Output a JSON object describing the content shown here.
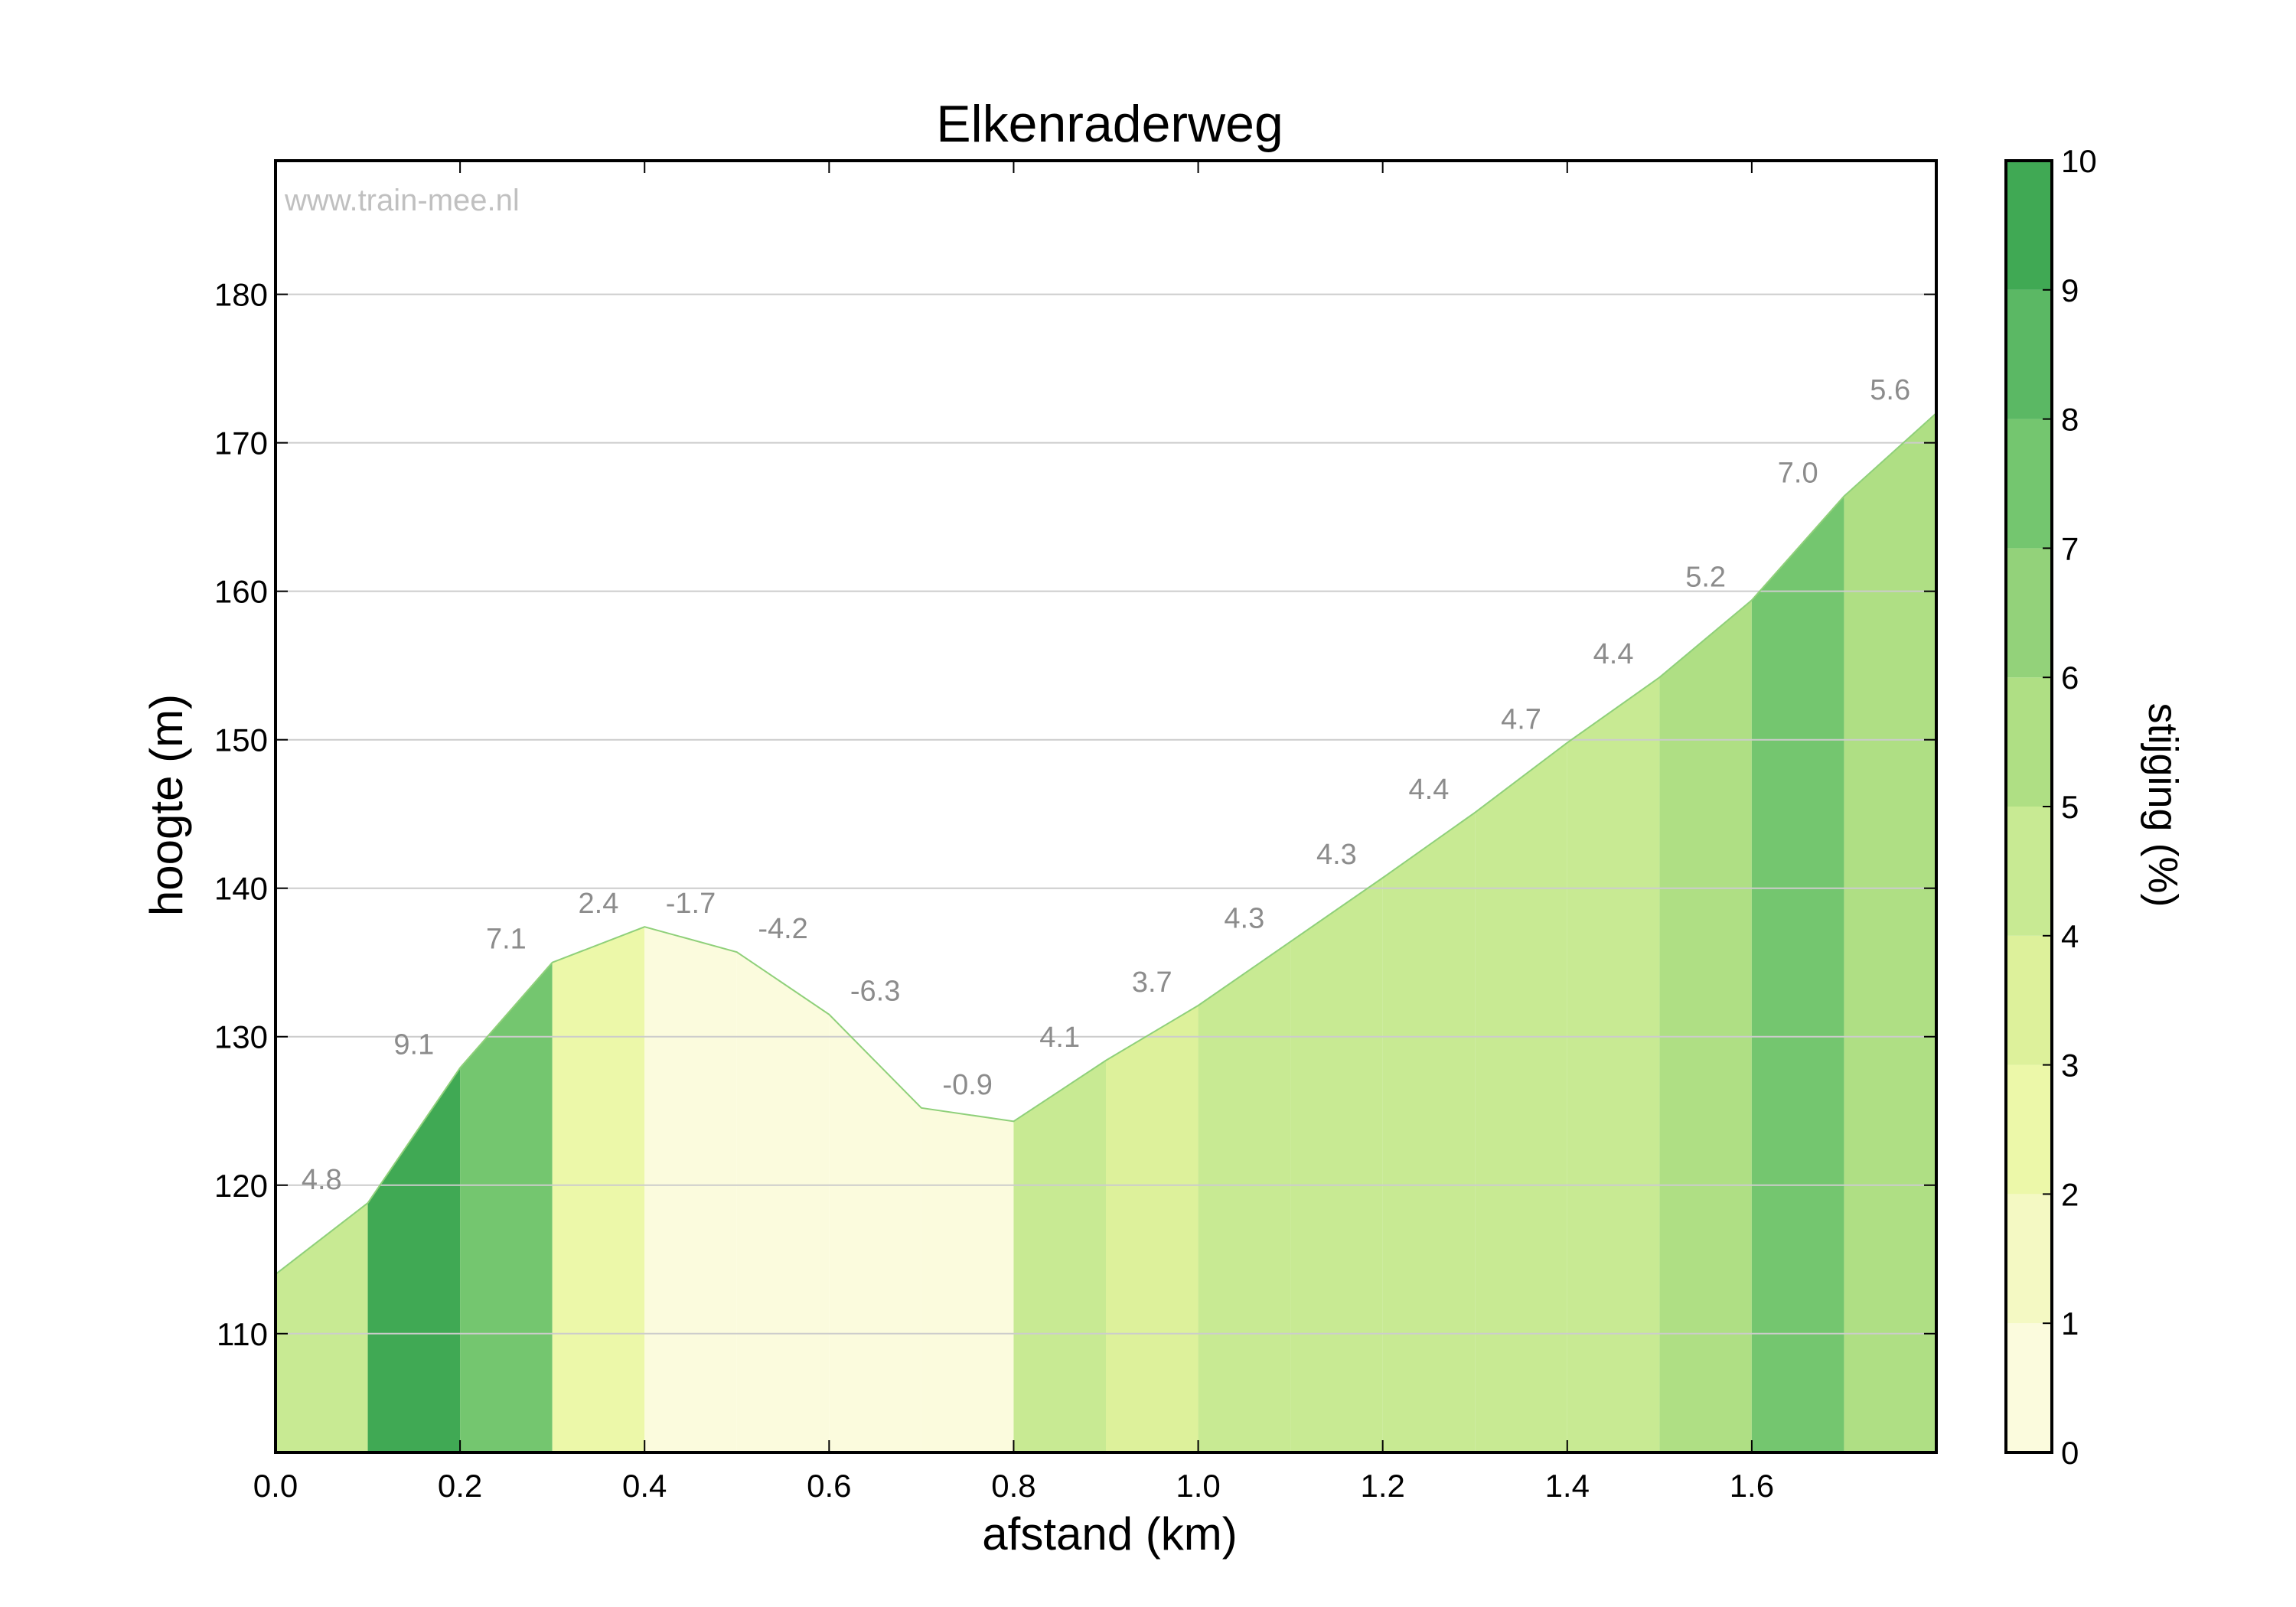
{
  "watermark": "www.train-mee.nl",
  "chart_data": {
    "type": "area",
    "title": "Elkenraderweg",
    "xlabel": "afstand (km)",
    "ylabel": "hoogte (m)",
    "xlim": [
      0,
      1.8
    ],
    "ylim": [
      102,
      189
    ],
    "xticks": [
      0.0,
      0.2,
      0.4,
      0.6,
      0.8,
      1.0,
      1.2,
      1.4,
      1.6
    ],
    "xtick_labels": [
      "0.0",
      "0.2",
      "0.4",
      "0.6",
      "0.8",
      "1.0",
      "1.2",
      "1.4",
      "1.6"
    ],
    "yticks": [
      110,
      120,
      130,
      140,
      150,
      160,
      170,
      180
    ],
    "ytick_labels": [
      "110",
      "120",
      "130",
      "140",
      "150",
      "160",
      "170",
      "180"
    ],
    "grid": "horizontal",
    "profile": {
      "x": [
        0.0,
        0.1,
        0.2,
        0.3,
        0.4,
        0.5,
        0.6,
        0.7,
        0.8,
        0.9,
        1.0,
        1.1,
        1.2,
        1.3,
        1.4,
        1.5,
        1.6,
        1.7,
        1.8
      ],
      "y": [
        114.0,
        118.8,
        127.9,
        135.0,
        137.4,
        135.7,
        131.5,
        125.2,
        124.3,
        128.4,
        132.1,
        136.4,
        140.7,
        145.1,
        149.8,
        154.2,
        159.4,
        166.4,
        172.0
      ]
    },
    "segments": [
      {
        "x0": 0.0,
        "x1": 0.1,
        "gradient": 4.8,
        "label": "4.8"
      },
      {
        "x0": 0.1,
        "x1": 0.2,
        "gradient": 9.1,
        "label": "9.1"
      },
      {
        "x0": 0.2,
        "x1": 0.3,
        "gradient": 7.1,
        "label": "7.1"
      },
      {
        "x0": 0.3,
        "x1": 0.4,
        "gradient": 2.4,
        "label": "2.4"
      },
      {
        "x0": 0.4,
        "x1": 0.5,
        "gradient": -1.7,
        "label": "-1.7"
      },
      {
        "x0": 0.5,
        "x1": 0.6,
        "gradient": -4.2,
        "label": "-4.2"
      },
      {
        "x0": 0.6,
        "x1": 0.7,
        "gradient": -6.3,
        "label": "-6.3"
      },
      {
        "x0": 0.7,
        "x1": 0.8,
        "gradient": -0.9,
        "label": "-0.9"
      },
      {
        "x0": 0.8,
        "x1": 0.9,
        "gradient": 4.1,
        "label": "4.1"
      },
      {
        "x0": 0.9,
        "x1": 1.0,
        "gradient": 3.7,
        "label": "3.7"
      },
      {
        "x0": 1.0,
        "x1": 1.1,
        "gradient": 4.3,
        "label": "4.3"
      },
      {
        "x0": 1.1,
        "x1": 1.2,
        "gradient": 4.3,
        "label": "4.3"
      },
      {
        "x0": 1.2,
        "x1": 1.3,
        "gradient": 4.4,
        "label": "4.4"
      },
      {
        "x0": 1.3,
        "x1": 1.4,
        "gradient": 4.7,
        "label": "4.7"
      },
      {
        "x0": 1.4,
        "x1": 1.5,
        "gradient": 4.4,
        "label": "4.4"
      },
      {
        "x0": 1.5,
        "x1": 1.6,
        "gradient": 5.2,
        "label": "5.2"
      },
      {
        "x0": 1.6,
        "x1": 1.7,
        "gradient": 7.0,
        "label": "7.0"
      },
      {
        "x0": 1.7,
        "x1": 1.8,
        "gradient": 5.6,
        "label": "5.6"
      }
    ],
    "colorbar": {
      "label": "stijging (%)",
      "range": [
        0,
        10
      ],
      "ticks": [
        0,
        1,
        2,
        3,
        4,
        5,
        6,
        7,
        8,
        9,
        10
      ],
      "tick_labels": [
        "0",
        "1",
        "2",
        "3",
        "4",
        "5",
        "6",
        "7",
        "8",
        "9",
        "10"
      ],
      "colors": [
        "#fbfbdd",
        "#f4f9c3",
        "#ecf8a9",
        "#ddf19b",
        "#c8ea93",
        "#afdf84",
        "#93d27a",
        "#74c66f",
        "#5bb864",
        "#40a954"
      ]
    },
    "colors": {
      "line": "#8fd07a",
      "grid": "#cccccc",
      "segment_label": "#8c8c8c",
      "watermark": "#c0c0c0"
    }
  }
}
